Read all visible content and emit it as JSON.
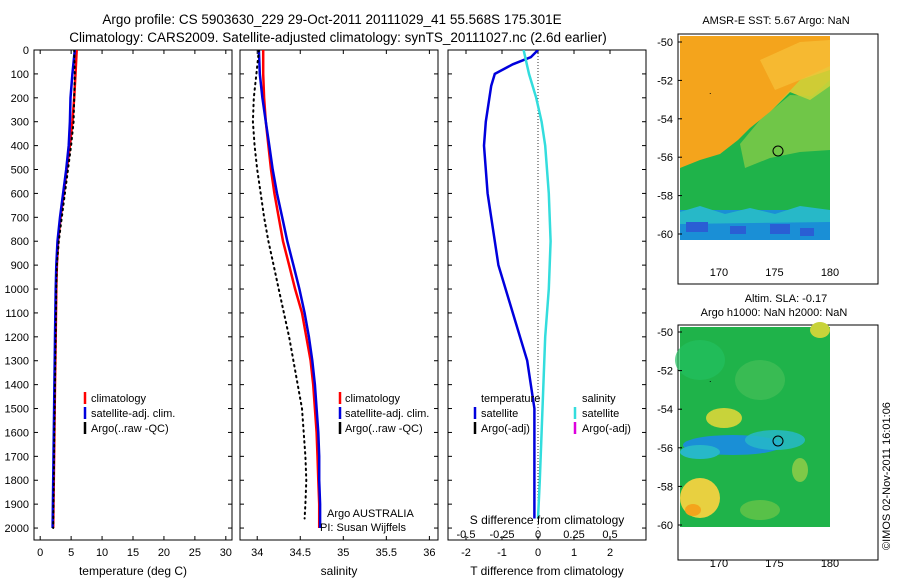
{
  "header": {
    "line1": "Argo profile: CS 5903630_229 29-Oct-2011 20111029_41 55.568S 175.301E",
    "line2": "Climatology: CARS2009. Satellite-adjusted climatology: synTS_20111027.nc (2.6d earlier)"
  },
  "colors": {
    "climatology": "#ff0000",
    "satellite": "#0000dd",
    "argo": "#000000",
    "salinity_satellite": "#33dddd",
    "salinity_argo": "#dd00dd"
  },
  "chart_data": [
    {
      "type": "line",
      "panel": "temperature",
      "xlabel": "temperature (deg C)",
      "xlim": [
        -1,
        31
      ],
      "xticks": [
        0,
        5,
        10,
        15,
        20,
        25,
        30
      ],
      "ylim": [
        2050,
        0
      ],
      "yticks": [
        0,
        100,
        200,
        300,
        400,
        500,
        600,
        700,
        800,
        900,
        1000,
        1100,
        1200,
        1300,
        1400,
        1500,
        1600,
        1700,
        1800,
        1900,
        2000
      ],
      "legend": [
        "climatology",
        "satellite-adj. clim.",
        "Argo(..raw -QC)"
      ],
      "series": [
        {
          "name": "climatology",
          "style": "solid",
          "color": "#ff0000",
          "points": [
            [
              5.9,
              0
            ],
            [
              5.7,
              100
            ],
            [
              5.5,
              200
            ],
            [
              5.2,
              300
            ],
            [
              4.8,
              400
            ],
            [
              4.3,
              500
            ],
            [
              3.8,
              600
            ],
            [
              3.3,
              700
            ],
            [
              2.9,
              800
            ],
            [
              2.7,
              900
            ],
            [
              2.6,
              1000
            ],
            [
              2.5,
              1200
            ],
            [
              2.4,
              1400
            ],
            [
              2.3,
              1600
            ],
            [
              2.2,
              1800
            ],
            [
              2.1,
              2000
            ]
          ]
        },
        {
          "name": "satellite-adj. clim.",
          "style": "solid",
          "color": "#0000dd",
          "points": [
            [
              5.6,
              0
            ],
            [
              5.2,
              100
            ],
            [
              4.9,
              200
            ],
            [
              4.8,
              300
            ],
            [
              4.6,
              400
            ],
            [
              4.2,
              500
            ],
            [
              3.7,
              600
            ],
            [
              3.2,
              700
            ],
            [
              2.8,
              800
            ],
            [
              2.6,
              900
            ],
            [
              2.5,
              1000
            ],
            [
              2.4,
              1200
            ],
            [
              2.3,
              1400
            ],
            [
              2.2,
              1600
            ],
            [
              2.1,
              1800
            ],
            [
              2.0,
              2000
            ]
          ]
        },
        {
          "name": "Argo(..raw -QC)",
          "style": "dotted",
          "color": "#000000",
          "points": [
            [
              5.5,
              0
            ],
            [
              5.6,
              100
            ],
            [
              5.5,
              200
            ],
            [
              5.4,
              300
            ],
            [
              5.0,
              400
            ],
            [
              4.5,
              500
            ],
            [
              4.0,
              600
            ],
            [
              3.5,
              700
            ],
            [
              3.0,
              800
            ],
            [
              2.7,
              900
            ],
            [
              2.6,
              1000
            ],
            [
              2.5,
              1200
            ],
            [
              2.4,
              1400
            ],
            [
              2.3,
              1600
            ],
            [
              2.2,
              1800
            ],
            [
              2.1,
              2000
            ]
          ]
        }
      ]
    },
    {
      "type": "line",
      "panel": "salinity",
      "xlabel": "salinity",
      "xlim": [
        33.8,
        36.1
      ],
      "xticks": [
        34,
        34.5,
        35,
        35.5,
        36
      ],
      "ylim": [
        2050,
        0
      ],
      "legend": [
        "climatology",
        "satellite-adj. clim.",
        "Argo(..raw -QC)"
      ],
      "annotation": [
        "Argo AUSTRALIA",
        "PI: Susan Wijffels"
      ],
      "series": [
        {
          "name": "climatology",
          "style": "solid",
          "color": "#ff0000",
          "points": [
            [
              34.07,
              0
            ],
            [
              34.07,
              100
            ],
            [
              34.08,
              200
            ],
            [
              34.1,
              300
            ],
            [
              34.13,
              400
            ],
            [
              34.16,
              500
            ],
            [
              34.2,
              600
            ],
            [
              34.25,
              700
            ],
            [
              34.3,
              800
            ],
            [
              34.37,
              900
            ],
            [
              34.44,
              1000
            ],
            [
              34.52,
              1100
            ],
            [
              34.57,
              1200
            ],
            [
              34.62,
              1300
            ],
            [
              34.65,
              1400
            ],
            [
              34.67,
              1500
            ],
            [
              34.69,
              1600
            ],
            [
              34.7,
              1700
            ],
            [
              34.71,
              1800
            ],
            [
              34.72,
              1900
            ],
            [
              34.72,
              2000
            ]
          ]
        },
        {
          "name": "satellite-adj. clim.",
          "style": "solid",
          "color": "#0000dd",
          "points": [
            [
              34.02,
              0
            ],
            [
              34.03,
              100
            ],
            [
              34.06,
              200
            ],
            [
              34.1,
              300
            ],
            [
              34.14,
              400
            ],
            [
              34.18,
              500
            ],
            [
              34.23,
              600
            ],
            [
              34.29,
              700
            ],
            [
              34.35,
              800
            ],
            [
              34.42,
              900
            ],
            [
              34.49,
              1000
            ],
            [
              34.55,
              1100
            ],
            [
              34.6,
              1200
            ],
            [
              34.64,
              1300
            ],
            [
              34.67,
              1400
            ],
            [
              34.69,
              1500
            ],
            [
              34.71,
              1600
            ],
            [
              34.72,
              1700
            ],
            [
              34.72,
              1800
            ],
            [
              34.73,
              1900
            ],
            [
              34.73,
              2000
            ]
          ]
        },
        {
          "name": "Argo(..raw -QC)",
          "style": "dotted",
          "color": "#000000",
          "points": [
            [
              34.02,
              0
            ],
            [
              33.99,
              100
            ],
            [
              33.96,
              200
            ],
            [
              33.95,
              300
            ],
            [
              33.97,
              400
            ],
            [
              34.0,
              500
            ],
            [
              34.04,
              600
            ],
            [
              34.08,
              700
            ],
            [
              34.13,
              800
            ],
            [
              34.19,
              900
            ],
            [
              34.25,
              1000
            ],
            [
              34.31,
              1100
            ],
            [
              34.37,
              1200
            ],
            [
              34.42,
              1300
            ],
            [
              34.47,
              1400
            ],
            [
              34.52,
              1500
            ],
            [
              34.54,
              1600
            ],
            [
              34.56,
              1700
            ],
            [
              34.57,
              1800
            ],
            [
              34.56,
              1900
            ],
            [
              34.55,
              1960
            ]
          ]
        }
      ]
    },
    {
      "type": "line",
      "panel": "difference",
      "xlabel": "T difference from climatology",
      "xlabel_top": "S difference from climatology",
      "xlim": [
        -2.5,
        3.0
      ],
      "xticks": [
        -2,
        -1,
        0,
        1,
        2
      ],
      "s_xticks": [
        "-0.5",
        "-0.25",
        "0",
        "0.25",
        "0.5"
      ],
      "ylim": [
        2050,
        0
      ],
      "legend_temperature": {
        "title": "temperature",
        "items": [
          "satellite",
          "Argo(-adj)"
        ]
      },
      "legend_salinity": {
        "title": "salinity",
        "items": [
          "satellite",
          "Argo(-adj)"
        ]
      },
      "series": [
        {
          "name": "temperature satellite",
          "style": "solid",
          "color": "#0000dd",
          "points": [
            [
              0.0,
              0
            ],
            [
              -0.2,
              30
            ],
            [
              -0.7,
              60
            ],
            [
              -1.2,
              100
            ],
            [
              -1.3,
              150
            ],
            [
              -1.35,
              200
            ],
            [
              -1.45,
              300
            ],
            [
              -1.5,
              400
            ],
            [
              -1.45,
              500
            ],
            [
              -1.4,
              600
            ],
            [
              -1.3,
              700
            ],
            [
              -1.2,
              800
            ],
            [
              -1.1,
              900
            ],
            [
              -0.9,
              1000
            ],
            [
              -0.7,
              1100
            ],
            [
              -0.5,
              1200
            ],
            [
              -0.3,
              1300
            ],
            [
              -0.2,
              1400
            ],
            [
              -0.1,
              1500
            ],
            [
              -0.1,
              1700
            ],
            [
              -0.1,
              1900
            ],
            [
              -0.1,
              1960
            ]
          ]
        },
        {
          "name": "salinity satellite",
          "style": "solid",
          "color": "#33dddd",
          "points": [
            [
              -0.4,
              0
            ],
            [
              -0.25,
              100
            ],
            [
              -0.05,
              200
            ],
            [
              0.1,
              300
            ],
            [
              0.2,
              400
            ],
            [
              0.3,
              600
            ],
            [
              0.35,
              800
            ],
            [
              0.3,
              1000
            ],
            [
              0.2,
              1200
            ],
            [
              0.15,
              1400
            ],
            [
              0.1,
              1600
            ],
            [
              0.05,
              1800
            ],
            [
              0.0,
              1960
            ]
          ]
        }
      ]
    },
    {
      "type": "heatmap",
      "panel": "map_sst",
      "title": "AMSR-E SST: 5.67 Argo: NaN",
      "xticks": [
        170,
        175,
        180
      ],
      "yticks": [
        -50,
        -52,
        -54,
        -56,
        -58,
        -60
      ],
      "marker": {
        "lon": 175.3,
        "lat": -55.57
      }
    },
    {
      "type": "heatmap",
      "panel": "map_sla",
      "title": "Altim. SLA: -0.17",
      "subtitle": "Argo h1000: NaN h2000: NaN",
      "xticks": [
        170,
        175,
        180
      ],
      "yticks": [
        -50,
        -52,
        -54,
        -56,
        -58,
        -60
      ],
      "marker": {
        "lon": 175.3,
        "lat": -55.57
      }
    }
  ],
  "credit": "©IMOS 02-Nov-2011 16:01:06"
}
